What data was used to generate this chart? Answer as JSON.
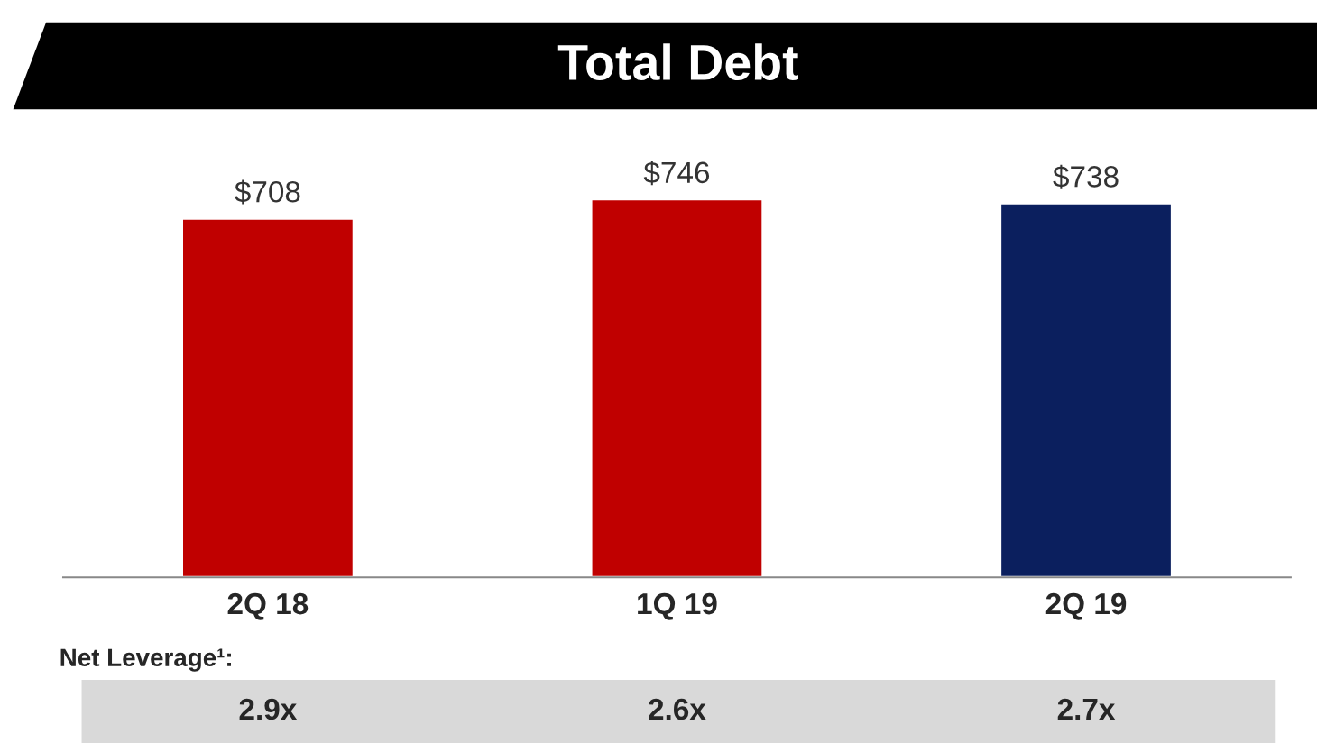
{
  "chart_data": {
    "type": "bar",
    "title": "Total Debt",
    "categories": [
      "2Q 18",
      "1Q 19",
      "2Q 19"
    ],
    "values": [
      708,
      746,
      738
    ],
    "colors": [
      "#c00000",
      "#c00000",
      "#0b1f5e"
    ],
    "value_labels": [
      "$708",
      "$746",
      "$738"
    ],
    "tick_labels": "x",
    "annotations": [
      "Net Leverage¹:",
      "2.9x",
      "2.6x",
      "2.7x"
    ]
  }
}
